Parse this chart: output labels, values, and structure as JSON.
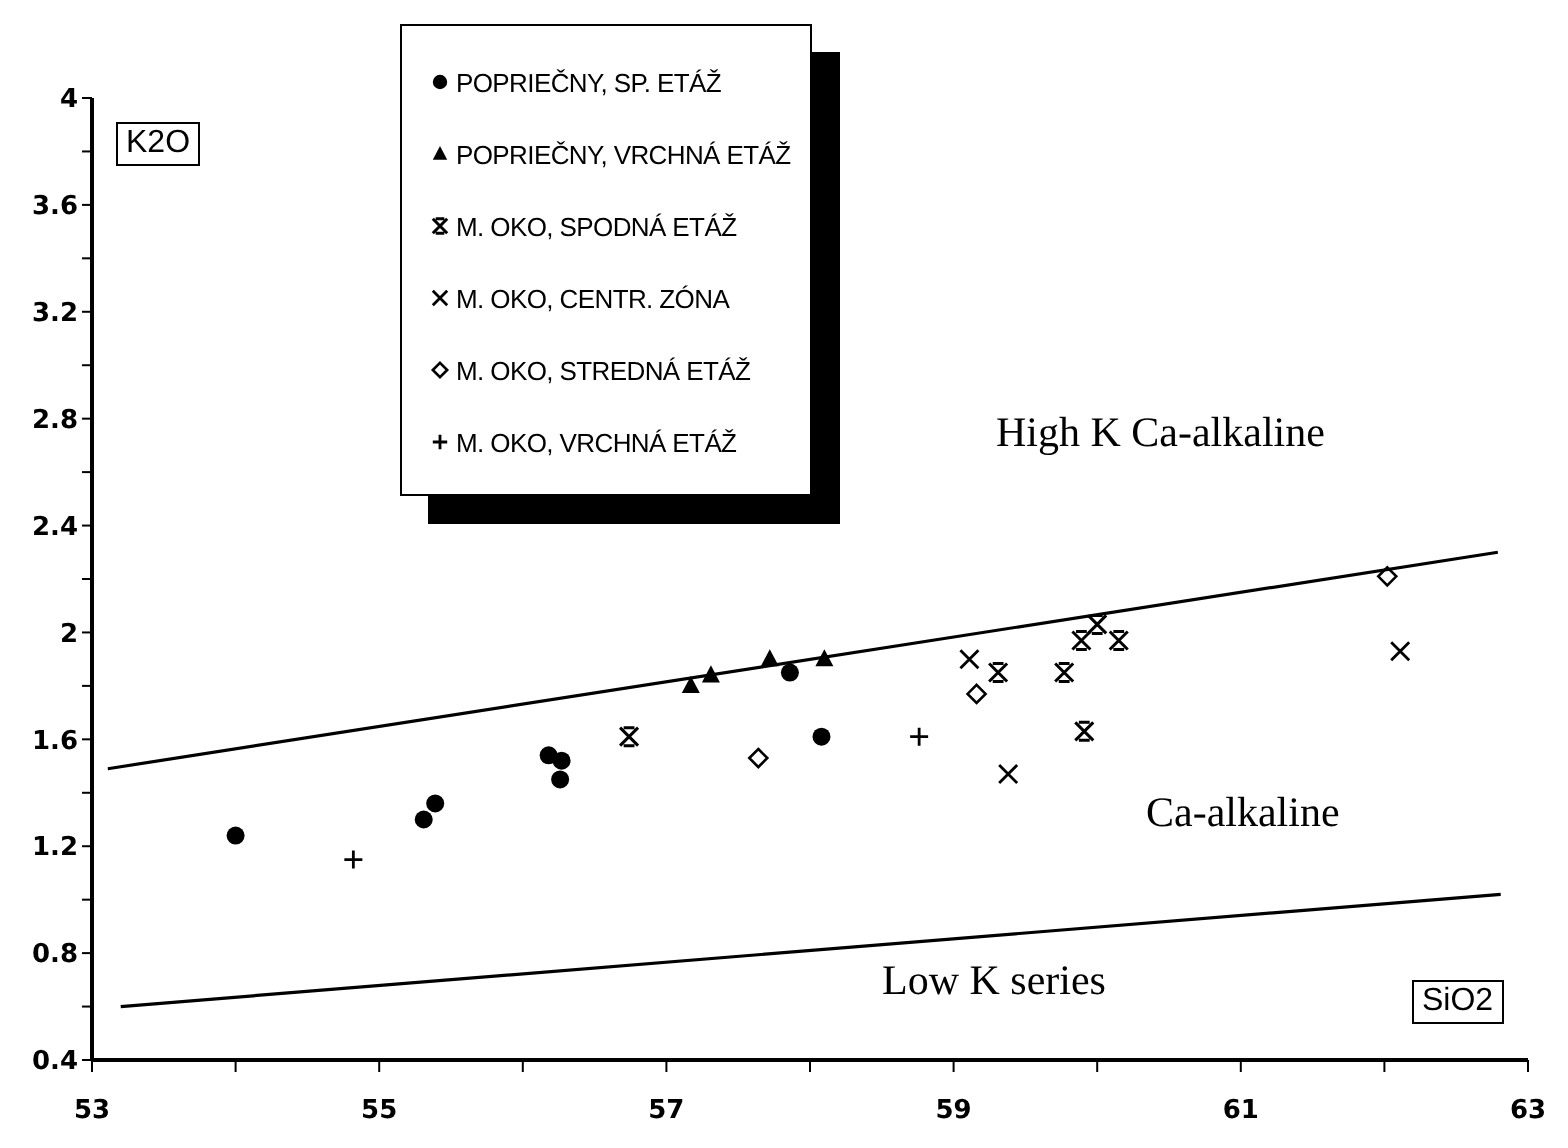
{
  "chart_data": {
    "type": "scatter",
    "xlabel": "SiO2",
    "ylabel": "K2O",
    "xlim": [
      53,
      63
    ],
    "xticks": [
      53,
      {
        "value": 54,
        "label": null
      },
      55,
      {
        "value": 56,
        "label": null
      },
      57,
      {
        "value": 58,
        "label": null
      },
      59,
      {
        "value": 60,
        "label": null
      },
      61,
      {
        "value": 62,
        "label": null
      },
      63
    ],
    "ylim": [
      0.4,
      4
    ],
    "yticks": [
      0.4,
      {
        "value": 0.6,
        "label": null
      },
      0.8,
      {
        "value": 1,
        "label": null
      },
      1.2,
      {
        "value": 1.4,
        "label": null
      },
      1.6,
      {
        "value": 1.8,
        "label": null
      },
      2,
      {
        "value": 2.2,
        "label": null
      },
      2.4,
      {
        "value": 2.6,
        "label": null
      },
      2.8,
      {
        "value": 3,
        "label": null
      },
      3.2,
      {
        "value": 3.4,
        "label": null
      },
      3.6,
      {
        "value": 3.8,
        "label": null
      },
      4
    ],
    "legend": "top left",
    "annotations": [
      "High K Ca-alkaline",
      "Ca-alkaline",
      "Low K series"
    ],
    "series": [
      {
        "name": "POPRIEČNY, SP. ETÁŽ",
        "color": "#000000",
        "marker": "circle",
        "x": [
          54.0,
          55.31,
          55.39,
          56.18,
          56.27,
          56.26,
          57.86,
          58.08
        ],
        "values": [
          1.24,
          1.3,
          1.36,
          1.54,
          1.52,
          1.45,
          1.85,
          1.61
        ]
      },
      {
        "name": "POPRIEČNY, VRCHNÁ ETÁŽ",
        "color": "#000000",
        "marker": "triangle",
        "x": [
          57.17,
          57.31,
          57.72,
          58.1
        ],
        "values": [
          1.8,
          1.84,
          1.9,
          1.9
        ]
      },
      {
        "name": "M. OKO, SPODNÁ ETÁŽ",
        "color": "#000000",
        "x": [
          56.74,
          59.31,
          59.77,
          59.89,
          60.0,
          60.15,
          59.91
        ],
        "values": [
          1.61,
          1.85,
          1.85,
          1.97,
          2.03,
          1.97,
          1.63
        ]
      },
      {
        "name": "M. OKO, CENTR. ZÓNA",
        "color": "#000000",
        "marker": "cross",
        "x": [
          59.11,
          59.38,
          62.11
        ],
        "values": [
          1.9,
          1.47,
          1.93
        ]
      },
      {
        "name": "M. OKO, STREDNÁ ETÁŽ",
        "color": "#000000",
        "marker": "diamond",
        "x": [
          57.64,
          59.16,
          62.02
        ],
        "values": [
          1.53,
          1.77,
          2.21
        ]
      },
      {
        "name": "M. OKO, VRCHNÁ ETÁŽ",
        "color": "#000000",
        "marker": "plus",
        "x": [
          54.82,
          58.76
        ],
        "values": [
          1.15,
          1.61
        ]
      },
      {
        "type": "line",
        "color": "#000000",
        "marker": "none",
        "line_style": "solid",
        "x": [
          53.11,
          62.79
        ],
        "values": [
          1.49,
          2.3
        ]
      },
      {
        "type": "line",
        "color": "#000000",
        "marker": "none",
        "line_style": "solid",
        "x": [
          53.2,
          62.81
        ],
        "values": [
          0.6,
          1.02
        ]
      }
    ]
  }
}
